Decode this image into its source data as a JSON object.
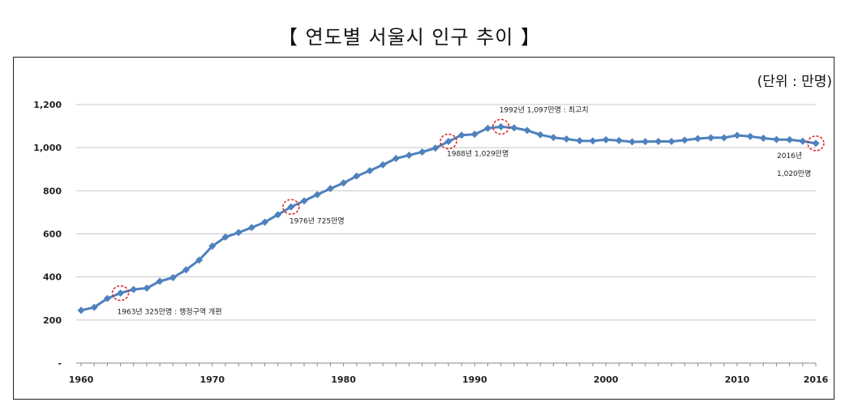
{
  "title": "【 연도별 서울시 인구 추이 】",
  "unit_label": "(단위 : 만명)",
  "colors": {
    "line": "#4f81bd",
    "marker": "#4f81bd",
    "highlight": "#e02020",
    "grid": "#c8c8c8"
  },
  "chart_data": {
    "type": "line",
    "title": "【 연도별 서울시 인구 추이 】",
    "xlabel": "",
    "ylabel": "",
    "unit": "(단위 : 만명)",
    "xlim": [
      1960,
      2016
    ],
    "ylim": [
      0,
      1200
    ],
    "x_ticks": [
      "1960",
      "1970",
      "1980",
      "1990",
      "2000",
      "2010",
      "2016"
    ],
    "y_ticks": [
      "-",
      "200",
      "400",
      "600",
      "800",
      "1,000",
      "1,200"
    ],
    "grid": true,
    "series": [
      {
        "x": [
          1960,
          1961,
          1962,
          1963,
          1964,
          1965,
          1966,
          1967,
          1968,
          1969,
          1970,
          1971,
          1972,
          1973,
          1974,
          1975,
          1976,
          1977,
          1978,
          1979,
          1980,
          1981,
          1982,
          1983,
          1984,
          1985,
          1986,
          1987,
          1988,
          1989,
          1990,
          1991,
          1992,
          1993,
          1994,
          1995,
          1996,
          1997,
          1998,
          1999,
          2000,
          2001,
          2002,
          2003,
          2004,
          2005,
          2006,
          2007,
          2008,
          2009,
          2010,
          2011,
          2012,
          2013,
          2014,
          2015,
          2016
        ],
        "values": [
          245,
          259,
          300,
          325,
          342,
          348,
          380,
          397,
          433,
          478,
          543,
          585,
          606,
          629,
          654,
          689,
          725,
          753,
          782,
          810,
          836,
          868,
          893,
          920,
          950,
          965,
          980,
          998,
          1029,
          1058,
          1062,
          1090,
          1097,
          1092,
          1080,
          1060,
          1047,
          1040,
          1032,
          1031,
          1037,
          1033,
          1027,
          1028,
          1029,
          1029,
          1035,
          1042,
          1046,
          1046,
          1057,
          1052,
          1044,
          1038,
          1037,
          1030,
          1020
        ]
      }
    ],
    "annotations": [
      {
        "year": 1963,
        "value": 325,
        "text": "1963년 325만명 : 행정구역 개편"
      },
      {
        "year": 1976,
        "value": 725,
        "text": "1976년 725만명"
      },
      {
        "year": 1988,
        "value": 1029,
        "text": "1988년 1,029만명"
      },
      {
        "year": 1992,
        "value": 1097,
        "text": "1992년 1,097만명 : 최고치"
      },
      {
        "year": 2016,
        "value": 1020,
        "text": "2016년",
        "text2": "1,020만명"
      }
    ]
  }
}
